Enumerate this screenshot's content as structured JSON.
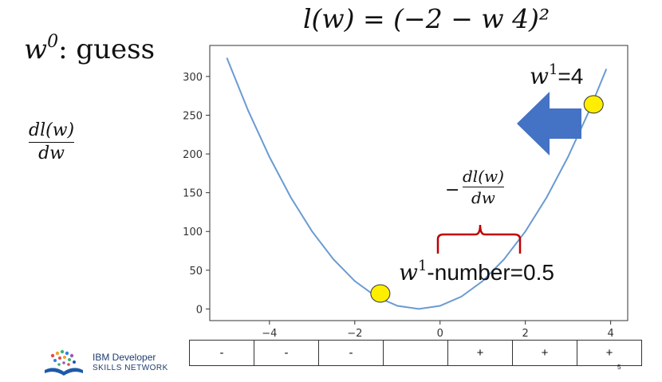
{
  "slide": {
    "title": "l(w) = (−2 − w 4)²",
    "w0_var": "w",
    "w0_sup": "0",
    "w0_text": ": guess",
    "derivative_num": "dl(w)",
    "derivative_den": "dw",
    "neg_sign": "−",
    "neg_derivative_num": "dl(w)",
    "neg_derivative_den": "dw",
    "w1_var": "w",
    "w1_sup": "1",
    "w1_eq": "=4",
    "update_var": "w",
    "update_sup": "1",
    "update_eq": "-number=0.5",
    "page_number": "5"
  },
  "sign_table": [
    "-",
    "-",
    "-",
    "",
    "+",
    "+",
    "+"
  ],
  "logo": {
    "line1": "IBM Developer",
    "line2": "SKILLS NETWORK"
  },
  "colors": {
    "curve": "#6a9bd1",
    "arrow": "#4472c4",
    "marker": "#ffee00",
    "brace": "#c00000"
  },
  "chart_data": {
    "type": "line",
    "title": "",
    "xlabel": "",
    "ylabel": "",
    "xlim": [
      -5.4,
      4.4
    ],
    "ylim": [
      -15,
      340
    ],
    "xticks": [
      -4,
      -2,
      0,
      2,
      4
    ],
    "yticks": [
      0,
      50,
      100,
      150,
      200,
      250,
      300
    ],
    "grid": false,
    "series": [
      {
        "x": [
          -5,
          -4.5,
          -4,
          -3.5,
          -3,
          -2.5,
          -2,
          -1.5,
          -1,
          -0.5,
          0,
          0.5,
          1,
          1.5,
          2,
          2.5,
          3,
          3.5,
          3.9
        ],
        "y": [
          324,
          256,
          196,
          144,
          100,
          64,
          36,
          16,
          4,
          0,
          4,
          16,
          36,
          64,
          100,
          144,
          196,
          256,
          309.76
        ]
      }
    ],
    "points": [
      {
        "x": -1.4,
        "y": 20
      },
      {
        "x": 3.6,
        "y": 264
      }
    ]
  }
}
